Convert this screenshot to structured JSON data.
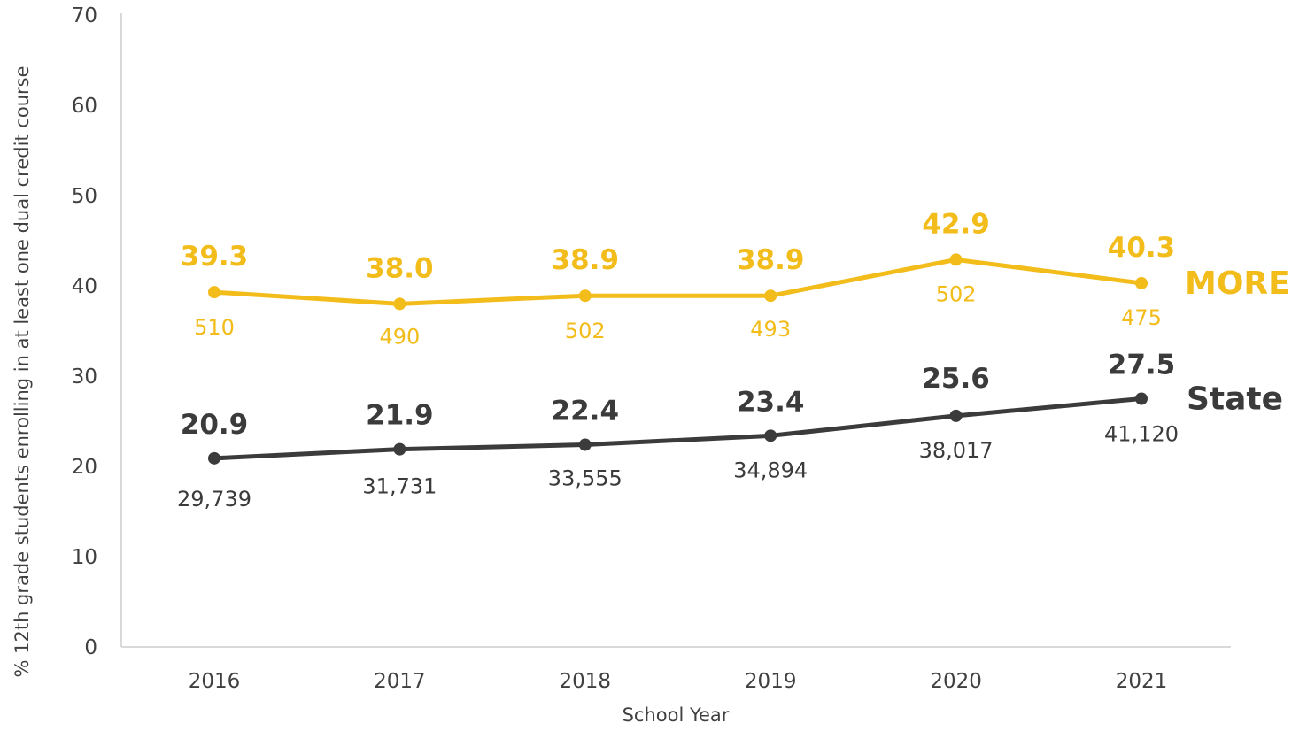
{
  "chart_data": {
    "type": "line",
    "title": "",
    "xlabel": "School Year",
    "ylabel": "% 12th grade students enrolling in at least one dual credit course",
    "categories": [
      "2016",
      "2017",
      "2018",
      "2019",
      "2020",
      "2021"
    ],
    "ylim": [
      0,
      70
    ],
    "yticks": [
      "0",
      "10",
      "20",
      "30",
      "40",
      "50",
      "60",
      "70"
    ],
    "grid": false,
    "legend": "series names labeled at right end of lines",
    "series": [
      {
        "name": "MORE",
        "color": "#F2BC1B",
        "values": [
          39.3,
          38.0,
          38.9,
          38.9,
          42.9,
          40.3
        ],
        "value_labels": [
          "39.3",
          "38.0",
          "38.9",
          "38.9",
          "42.9",
          "40.3"
        ],
        "counts": [
          "510",
          "490",
          "502",
          "493",
          "502",
          "475"
        ]
      },
      {
        "name": "State",
        "color": "#3B3B3B",
        "values": [
          20.9,
          21.9,
          22.4,
          23.4,
          25.6,
          27.5
        ],
        "value_labels": [
          "20.9",
          "21.9",
          "22.4",
          "23.4",
          "25.6",
          "27.5"
        ],
        "counts": [
          "29,739",
          "31,731",
          "33,555",
          "34,894",
          "38,017",
          "41,120"
        ]
      }
    ]
  }
}
